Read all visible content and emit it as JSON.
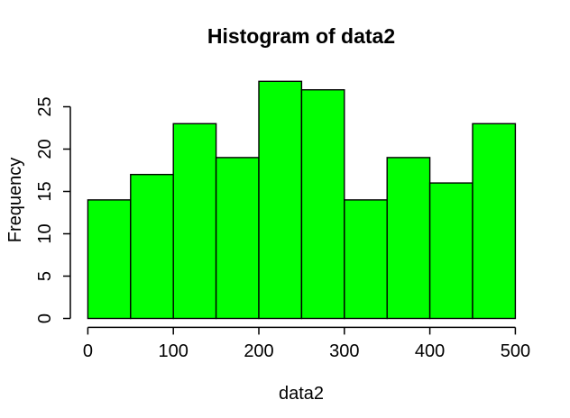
{
  "figure": {
    "background": "#ffffff"
  },
  "chart_data": {
    "type": "bar",
    "subtype": "histogram",
    "title": "Histogram of data2",
    "xlabel": "data2",
    "ylabel": "Frequency",
    "bin_edges": [
      0,
      50,
      100,
      150,
      200,
      250,
      300,
      350,
      400,
      450,
      500
    ],
    "values": [
      14,
      17,
      23,
      19,
      28,
      27,
      14,
      19,
      16,
      23
    ],
    "x_ticks": [
      0,
      100,
      200,
      300,
      400,
      500
    ],
    "y_ticks": [
      0,
      5,
      10,
      15,
      20,
      25
    ],
    "xlim": [
      0,
      500
    ],
    "ylim": [
      0,
      28
    ],
    "grid": false,
    "legend": null,
    "bar_fill": "#00ff00",
    "bar_stroke": "#000000",
    "axis_color": "#000000",
    "text_color": "#000000"
  }
}
